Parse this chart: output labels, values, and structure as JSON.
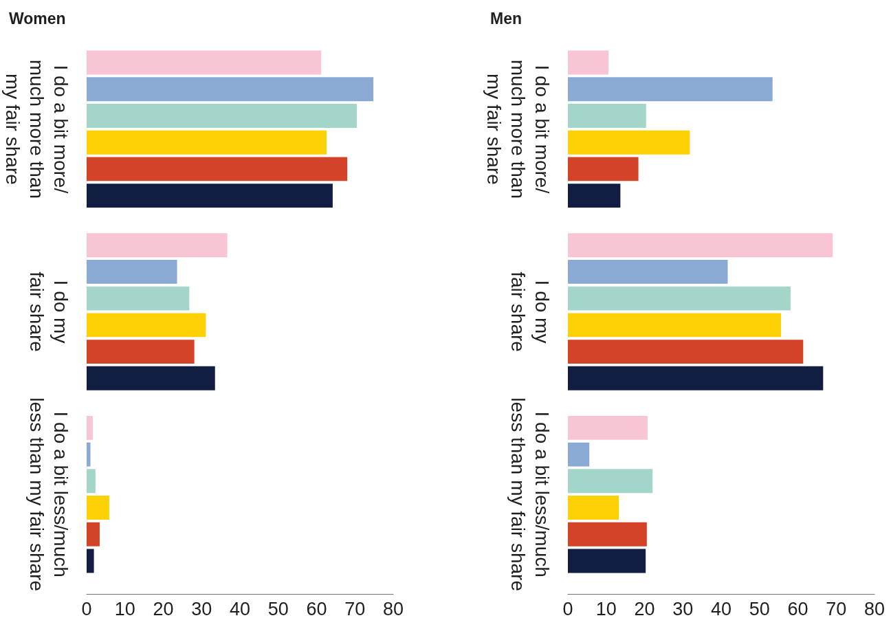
{
  "chart_data": [
    {
      "type": "bar",
      "orientation": "horizontal",
      "title": "Women",
      "categories": [
        "I do a bit more/\nmuch more than\nmy fair share",
        "I do my\nfair share",
        "I do a bit less/much\nless than my fair share"
      ],
      "series": [
        {
          "color": "#f8c5d5",
          "values": [
            61.2,
            36.7,
            1.6
          ]
        },
        {
          "color": "#8aaad3",
          "values": [
            74.8,
            23.6,
            1.0
          ]
        },
        {
          "color": "#a3d5c9",
          "values": [
            70.5,
            26.8,
            2.3
          ]
        },
        {
          "color": "#fdd106",
          "values": [
            62.6,
            31.1,
            5.9
          ]
        },
        {
          "color": "#d34327",
          "values": [
            68.0,
            28.1,
            3.4
          ]
        },
        {
          "color": "#121d42",
          "values": [
            64.2,
            33.5,
            1.9
          ]
        }
      ],
      "xlim": [
        0,
        80
      ],
      "xticks": [
        0,
        10,
        20,
        30,
        40,
        50,
        60,
        70,
        80
      ]
    },
    {
      "type": "bar",
      "orientation": "horizontal",
      "title": "Men",
      "categories": [
        "I do a bit more/\nmuch more than\nmy fair share",
        "I do my\nfair share",
        "I do a bit less/much\nless than my fair share"
      ],
      "series": [
        {
          "color": "#f8c5d5",
          "values": [
            10.6,
            69.1,
            20.8
          ]
        },
        {
          "color": "#8aaad3",
          "values": [
            53.4,
            41.7,
            5.6
          ]
        },
        {
          "color": "#a3d5c9",
          "values": [
            20.4,
            58.1,
            22.1
          ]
        },
        {
          "color": "#fdd106",
          "values": [
            31.8,
            55.6,
            13.3
          ]
        },
        {
          "color": "#d34327",
          "values": [
            18.4,
            61.4,
            20.6
          ]
        },
        {
          "color": "#121d42",
          "values": [
            13.7,
            66.6,
            20.3
          ]
        }
      ],
      "xlim": [
        0,
        80
      ],
      "xticks": [
        0,
        10,
        20,
        30,
        40,
        50,
        60,
        70,
        80
      ]
    }
  ]
}
